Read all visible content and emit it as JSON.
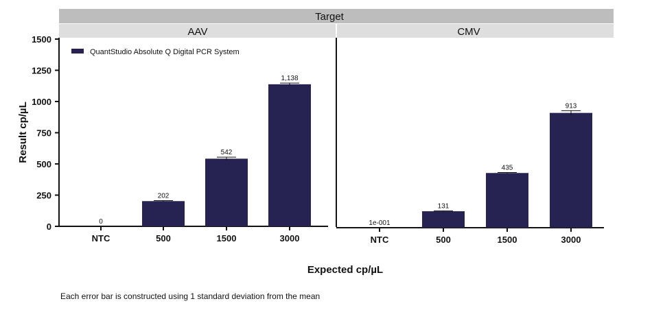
{
  "chart_data": {
    "type": "bar",
    "facet_title": "Target",
    "panels": [
      {
        "name": "AAV",
        "categories": [
          "NTC",
          "500",
          "1500",
          "3000"
        ],
        "values": [
          0,
          202,
          542,
          1138
        ],
        "errors": [
          0,
          4,
          12,
          10
        ],
        "value_labels": [
          "0",
          "202",
          "542",
          "1,138"
        ]
      },
      {
        "name": "CMV",
        "categories": [
          "NTC",
          "500",
          "1500",
          "3000"
        ],
        "values": [
          0.1,
          131,
          435,
          913
        ],
        "errors": [
          0,
          3,
          4,
          18
        ],
        "value_labels": [
          "1e-001",
          "131",
          "435",
          "913"
        ]
      }
    ],
    "series": [
      {
        "name": "QuantStudio Absolute Q Digital PCR System",
        "color": "#262252"
      }
    ],
    "xlabel": "Expected cp/µL",
    "ylabel": "Result cp/µL",
    "ylim": [
      0,
      1500
    ],
    "yticks": [
      0,
      250,
      500,
      750,
      1000,
      1250,
      1500
    ],
    "grid": false,
    "legend_position": "top-left"
  },
  "footnote": "Each error bar is constructed using 1 standard deviation from the mean"
}
